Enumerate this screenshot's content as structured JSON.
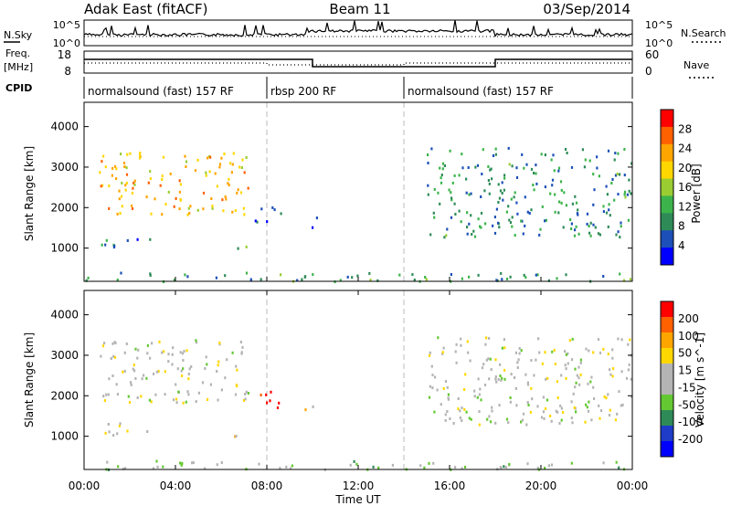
{
  "header": {
    "title": "Adak East (fitACF)",
    "beam": "Beam 11",
    "date": "03/Sep/2014"
  },
  "aux_panels": {
    "nsky_label": "N.Sky",
    "nsky_ticks": [
      "10^5",
      "10^0"
    ],
    "nsearch_label": "N.Search",
    "nsearch_ticks": [
      "10^5",
      "10^0"
    ],
    "freq_label": "Freq.",
    "freq_unit": "[MHz]",
    "freq_ticks": [
      "18",
      "8"
    ],
    "nave_label": "Nave",
    "nave_ticks": [
      "60",
      "0"
    ],
    "cpid_label": "CPID",
    "cpid_segments": [
      {
        "label": "normalsound (fast) 157 RF",
        "start": 0,
        "end": 8
      },
      {
        "label": "rbsp 200 RF",
        "start": 8,
        "end": 14
      },
      {
        "label": "normalsound (fast) 157 RF",
        "start": 14,
        "end": 24
      }
    ]
  },
  "colors": {
    "power_scale": [
      "#0000ff",
      "#1c4fb8",
      "#2e8b57",
      "#3cb44b",
      "#9acd32",
      "#ffd700",
      "#ffa500",
      "#ff6000",
      "#ff0000"
    ],
    "velocity_scale": [
      "#0000ff",
      "#1e3cc8",
      "#2e8b57",
      "#64c832",
      "#b4b4b4",
      "#b4b4b4",
      "#ffd700",
      "#ffa500",
      "#ff6000",
      "#ff0000"
    ]
  },
  "chart_data": [
    {
      "type": "heatmap",
      "name": "power",
      "xlabel": "Time UT",
      "ylabel": "Slant Range [km]",
      "x_ticks": [
        "00:00",
        "04:00",
        "08:00",
        "12:00",
        "16:00",
        "20:00",
        "00:00"
      ],
      "xlim": [
        0,
        24
      ],
      "ylim": [
        180,
        4600
      ],
      "y_ticks": [
        1000,
        2000,
        3000,
        4000
      ],
      "colorbar_label": "Power [dB]",
      "colorbar_ticks": [
        "28",
        "24",
        "20",
        "16",
        "12",
        "8",
        "4"
      ],
      "clim": [
        0,
        30
      ],
      "regions": [
        {
          "t0": 0.6,
          "t1": 7.2,
          "r0": 1850,
          "r1": 3400,
          "level": 20
        },
        {
          "t0": 0.6,
          "t1": 3.0,
          "r0": 1050,
          "r1": 1380,
          "level": 7
        },
        {
          "t0": 6.5,
          "t1": 7.3,
          "r0": 880,
          "r1": 1100,
          "level": 12
        },
        {
          "t0": 7.3,
          "t1": 8.6,
          "r0": 1650,
          "r1": 2150,
          "level": 4
        },
        {
          "t0": 9.6,
          "t1": 10.3,
          "r0": 1500,
          "r1": 1800,
          "level": 4
        },
        {
          "t0": 15.0,
          "t1": 24.0,
          "r0": 1300,
          "r1": 3500,
          "level": 9
        },
        {
          "t0": 0.0,
          "t1": 24.0,
          "r0": 200,
          "r1": 420,
          "level": 10
        }
      ]
    },
    {
      "type": "heatmap",
      "name": "velocity",
      "xlabel": "Time UT",
      "ylabel": "Slant Range [km]",
      "x_ticks": [
        "00:00",
        "04:00",
        "08:00",
        "12:00",
        "16:00",
        "20:00",
        "00:00"
      ],
      "xlim": [
        0,
        24
      ],
      "ylim": [
        180,
        4600
      ],
      "y_ticks": [
        1000,
        2000,
        3000,
        4000
      ],
      "colorbar_label": "Velocity [m s^-1]",
      "colorbar_ticks": [
        "200",
        "100",
        "50",
        "15",
        "-15",
        "-50",
        "-100",
        "-200"
      ],
      "clim": [
        -250,
        250
      ],
      "regions": [
        {
          "t0": 0.6,
          "t1": 7.2,
          "r0": 1850,
          "r1": 3400,
          "level": 0
        },
        {
          "t0": 0.6,
          "t1": 3.0,
          "r0": 1050,
          "r1": 1380,
          "level": 0
        },
        {
          "t0": 6.5,
          "t1": 7.3,
          "r0": 880,
          "r1": 1100,
          "level": 40
        },
        {
          "t0": 7.3,
          "t1": 8.6,
          "r0": 1650,
          "r1": 2150,
          "level": 230
        },
        {
          "t0": 9.6,
          "t1": 10.3,
          "r0": 1500,
          "r1": 1800,
          "level": 60
        },
        {
          "t0": 15.0,
          "t1": 24.0,
          "r0": 1300,
          "r1": 3500,
          "level": 0
        },
        {
          "t0": 0.0,
          "t1": 24.0,
          "r0": 200,
          "r1": 420,
          "level": -40
        }
      ]
    }
  ]
}
